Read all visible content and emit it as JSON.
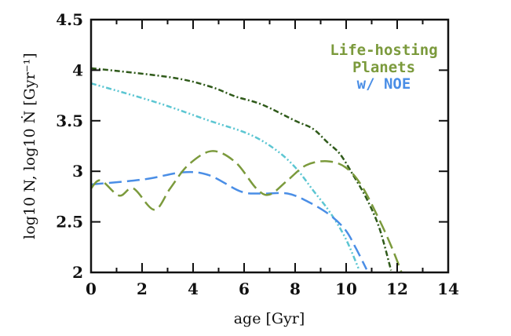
{
  "chart_data": {
    "type": "line",
    "xlabel": "age [Gyr]",
    "ylabel": "log10 N, log10 Ṅ [Gyr⁻¹]",
    "xlim": [
      0,
      14
    ],
    "ylim": [
      2,
      4.5
    ],
    "xticks": [
      "0",
      "2",
      "4",
      "6",
      "8",
      "10",
      "12",
      "14"
    ],
    "yticks": [
      "2",
      "2.5",
      "3",
      "3.5",
      "4",
      "4.5"
    ],
    "grid": false,
    "legend": {
      "lines": [
        "Life-hosting",
        "Planets",
        "w/ NOE"
      ],
      "placement": "top-right",
      "colors": [
        "#7b9a3c",
        "#7b9a3c",
        "#4a8ee6"
      ]
    },
    "series": [
      {
        "color": "#2f5a1a",
        "style": "dash-dot",
        "x": [
          0,
          3.1,
          4.64,
          5.66,
          6.7,
          8.0,
          8.7,
          9.25,
          9.76,
          10.28,
          10.8,
          11.3,
          11.76
        ],
        "y": [
          4.02,
          3.93,
          3.84,
          3.74,
          3.66,
          3.5,
          3.42,
          3.29,
          3.17,
          2.96,
          2.73,
          2.44,
          2.02
        ]
      },
      {
        "color": "#5cc6d2",
        "style": "dash-dot-dot",
        "x": [
          0,
          2.58,
          4.64,
          6.17,
          7.2,
          8.0,
          8.74,
          9.35,
          9.97,
          10.5
        ],
        "y": [
          3.87,
          3.68,
          3.5,
          3.37,
          3.22,
          3.04,
          2.8,
          2.6,
          2.34,
          2.03
        ]
      },
      {
        "color": "#4a8ee6",
        "style": "long-dash",
        "x": [
          0,
          2.07,
          3.6,
          4.64,
          5.87,
          6.7,
          7.7,
          8.5,
          9.35,
          9.97,
          10.38,
          10.8
        ],
        "y": [
          2.87,
          2.92,
          2.99,
          2.96,
          2.8,
          2.78,
          2.78,
          2.7,
          2.57,
          2.42,
          2.24,
          2.03
        ]
      },
      {
        "color": "#7b9a3c",
        "style": "long-dash",
        "x": [
          0,
          0.38,
          1.1,
          1.66,
          2.48,
          3.1,
          3.8,
          4.74,
          5.66,
          6.48,
          7.0,
          7.7,
          8.43,
          9.25,
          9.97,
          10.6,
          11.3,
          11.8,
          12.17
        ],
        "y": [
          2.83,
          2.91,
          2.76,
          2.83,
          2.62,
          2.83,
          3.06,
          3.2,
          3.09,
          2.83,
          2.77,
          2.91,
          3.06,
          3.1,
          3.04,
          2.86,
          2.52,
          2.24,
          2.0
        ]
      }
    ]
  }
}
